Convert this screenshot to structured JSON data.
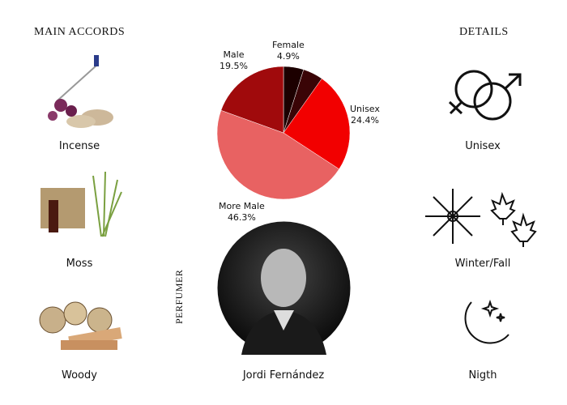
{
  "headings": {
    "accords": "MAIN ACCORDS",
    "details": "DETAILS",
    "perfumer": "PERFUMER"
  },
  "accords": [
    {
      "label": "Incense",
      "icon": "incense-image"
    },
    {
      "label": "Moss",
      "icon": "moss-image"
    },
    {
      "label": "Woody",
      "icon": "woody-image"
    }
  ],
  "details": [
    {
      "label": "Unisex",
      "icon": "gender-symbols-icon"
    },
    {
      "label": "Winter/Fall",
      "icon": "snowflake-leaves-icon"
    },
    {
      "label": "Nigth",
      "icon": "moon-stars-icon"
    }
  ],
  "perfumer": {
    "name": "Jordi Fernández"
  },
  "chart_data": {
    "type": "pie",
    "start": "12 o'clock, clockwise",
    "slices": [
      {
        "name": "Female",
        "value": 4.9,
        "label": "4.9%",
        "color": "#1c0000"
      },
      {
        "name": "",
        "value": 4.9,
        "label": "",
        "color": "#3a0406"
      },
      {
        "name": "Unisex",
        "value": 24.4,
        "label": "24.4%",
        "color": "#f20000"
      },
      {
        "name": "More Male",
        "value": 46.3,
        "label": "46.3%",
        "color": "#e86262"
      },
      {
        "name": "Male",
        "value": 19.5,
        "label": "19.5%",
        "color": "#a00a0c"
      }
    ]
  }
}
